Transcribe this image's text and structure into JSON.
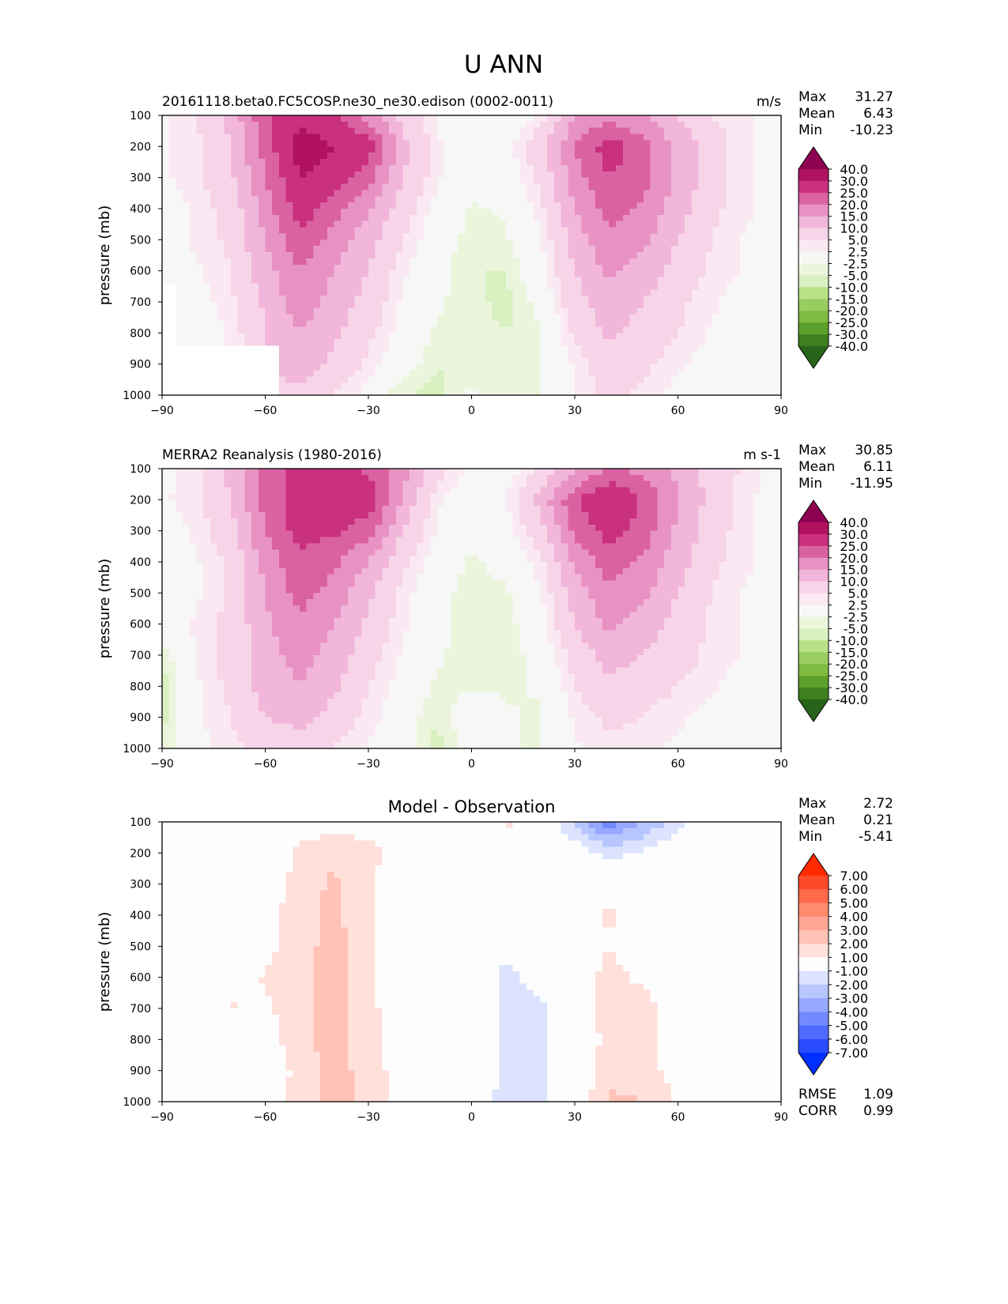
{
  "title": "U ANN",
  "chart_data": [
    {
      "type": "heatmap",
      "subtype": "filled-contour",
      "title": "20161118.beta0.FC5COSP.ne30_ne30.edison (0002-0011)",
      "units": "m/s",
      "xlabel": "",
      "ylabel": "pressure (mb)",
      "xlim": [
        -90,
        90
      ],
      "ylim": [
        1000,
        100
      ],
      "xticks": [
        "−90",
        "−60",
        "−30",
        "0",
        "30",
        "60",
        "90"
      ],
      "yticks": [
        "100",
        "200",
        "300",
        "400",
        "500",
        "600",
        "700",
        "800",
        "900",
        "1000"
      ],
      "stats": {
        "Max": "31.27",
        "Mean": "6.43",
        "Min": "-10.23"
      },
      "lat": [
        -90,
        -80,
        -70,
        -60,
        -50,
        -40,
        -30,
        -20,
        -10,
        0,
        10,
        20,
        30,
        40,
        50,
        60,
        70,
        80,
        90
      ],
      "lev": [
        100,
        200,
        300,
        400,
        500,
        600,
        700,
        800,
        900,
        1000
      ],
      "values": [
        [
          2,
          5,
          12,
          24,
          28,
          27,
          18,
          8,
          2,
          0,
          0,
          3,
          15,
          18,
          15,
          10,
          5,
          3,
          1
        ],
        [
          2,
          4,
          10,
          22,
          33,
          30,
          28,
          12,
          3,
          -1,
          1,
          8,
          20,
          28,
          22,
          14,
          7,
          3,
          1
        ],
        [
          2,
          4,
          9,
          20,
          30,
          28,
          22,
          10,
          3,
          -1,
          0,
          6,
          18,
          25,
          22,
          14,
          7,
          3,
          1
        ],
        [
          1,
          3,
          7,
          17,
          28,
          22,
          16,
          7,
          1,
          -3,
          -2,
          4,
          15,
          22,
          19,
          12,
          6,
          3,
          1
        ],
        [
          1,
          3,
          6,
          15,
          24,
          18,
          12,
          5,
          0,
          -4,
          -3,
          2,
          12,
          19,
          16,
          10,
          5,
          2,
          1
        ],
        [
          2,
          2,
          5,
          13,
          20,
          15,
          10,
          3,
          -1,
          -5,
          -5,
          1,
          10,
          16,
          13,
          8,
          4,
          2,
          1
        ],
        [
          null,
          1,
          4,
          11,
          18,
          13,
          8,
          2,
          -2,
          -4,
          -6,
          -1,
          8,
          13,
          10,
          6,
          3,
          1,
          1
        ],
        [
          null,
          0,
          3,
          10,
          15,
          11,
          6,
          1,
          -3,
          -4,
          -5,
          -3,
          6,
          11,
          8,
          5,
          2,
          1,
          0
        ],
        [
          null,
          null,
          null,
          null,
          12,
          9,
          4,
          0,
          -5,
          -3,
          -4,
          -3,
          3,
          8,
          6,
          3,
          1,
          0,
          0
        ],
        [
          null,
          null,
          null,
          null,
          9,
          5,
          1,
          -5,
          -6,
          -2,
          -5,
          -3,
          3,
          6,
          4,
          1,
          0,
          0,
          0
        ]
      ],
      "levels": [
        "40.0",
        "30.0",
        "25.0",
        "20.0",
        "15.0",
        "10.0",
        "5.0",
        "2.5",
        "-2.5",
        "-5.0",
        "-10.0",
        "-15.0",
        "-20.0",
        "-25.0",
        "-30.0",
        "-40.0"
      ],
      "colors": [
        "#8e0152",
        "#b0125f",
        "#c9307f",
        "#db62a1",
        "#e892c3",
        "#f1b6da",
        "#f8d4e8",
        "#fae8f2",
        "#f7f7f6",
        "#ebf5dc",
        "#d9f0c0",
        "#b8e186",
        "#9acd61",
        "#7fbc41",
        "#5ea02c",
        "#3f7f1f",
        "#276419"
      ]
    },
    {
      "type": "heatmap",
      "subtype": "filled-contour",
      "title": "MERRA2 Reanalysis (1980-2016)",
      "units": "m s-1",
      "xlabel": "",
      "ylabel": "pressure (mb)",
      "xlim": [
        -90,
        90
      ],
      "ylim": [
        1000,
        100
      ],
      "xticks": [
        "−90",
        "−60",
        "−30",
        "0",
        "30",
        "60",
        "90"
      ],
      "yticks": [
        "100",
        "200",
        "300",
        "400",
        "500",
        "600",
        "700",
        "800",
        "900",
        "1000"
      ],
      "stats": {
        "Max": "30.85",
        "Mean": "6.11",
        "Min": "-11.95"
      },
      "lat": [
        -90,
        -80,
        -70,
        -60,
        -50,
        -40,
        -30,
        -20,
        -10,
        0,
        10,
        20,
        30,
        40,
        50,
        60,
        70,
        80,
        90
      ],
      "lev": [
        100,
        200,
        300,
        400,
        500,
        600,
        700,
        800,
        900,
        1000
      ],
      "values": [
        [
          1,
          4,
          12,
          22,
          27,
          27,
          24,
          18,
          7,
          1,
          1,
          5,
          14,
          20,
          19,
          14,
          8,
          4,
          1
        ],
        [
          2,
          4,
          10,
          22,
          28,
          28,
          29,
          14,
          3,
          0,
          2,
          12,
          24,
          31,
          24,
          15,
          8,
          3,
          1
        ],
        [
          1,
          3,
          8,
          20,
          27,
          26,
          22,
          10,
          2,
          -1,
          1,
          8,
          21,
          27,
          23,
          14,
          7,
          3,
          1
        ],
        [
          1,
          2,
          6,
          17,
          24,
          21,
          15,
          6,
          0,
          -3,
          -1,
          4,
          16,
          23,
          19,
          12,
          6,
          3,
          1
        ],
        [
          1,
          2,
          6,
          15,
          22,
          18,
          11,
          4,
          -1,
          -4,
          -3,
          2,
          12,
          19,
          16,
          10,
          5,
          2,
          1
        ],
        [
          -1,
          3,
          6,
          14,
          19,
          15,
          9,
          3,
          -1,
          -5,
          -4,
          1,
          10,
          16,
          13,
          8,
          4,
          2,
          1
        ],
        [
          -4,
          3,
          7,
          13,
          17,
          13,
          7,
          2,
          -2,
          -4,
          -4,
          -1,
          7,
          12,
          10,
          7,
          4,
          2,
          1
        ],
        [
          -7,
          2,
          6,
          12,
          15,
          11,
          5,
          1,
          -3,
          -3,
          -3,
          -2,
          5,
          9,
          7,
          5,
          3,
          1,
          0
        ],
        [
          -6,
          2,
          5,
          10,
          12,
          8,
          4,
          0,
          -5,
          1,
          -2,
          -3,
          3,
          6,
          5,
          3,
          1,
          0,
          0
        ],
        [
          -4,
          1,
          4,
          6,
          7,
          5,
          2,
          -1,
          -6,
          0,
          -2,
          -3,
          2,
          4,
          3,
          2,
          1,
          0,
          0
        ]
      ],
      "levels": [
        "40.0",
        "30.0",
        "25.0",
        "20.0",
        "15.0",
        "10.0",
        "5.0",
        "2.5",
        "-2.5",
        "-5.0",
        "-10.0",
        "-15.0",
        "-20.0",
        "-25.0",
        "-30.0",
        "-40.0"
      ],
      "colors": [
        "#8e0152",
        "#b0125f",
        "#c9307f",
        "#db62a1",
        "#e892c3",
        "#f1b6da",
        "#f8d4e8",
        "#fae8f2",
        "#f7f7f6",
        "#ebf5dc",
        "#d9f0c0",
        "#b8e186",
        "#9acd61",
        "#7fbc41",
        "#5ea02c",
        "#3f7f1f",
        "#276419"
      ]
    },
    {
      "type": "heatmap",
      "subtype": "filled-contour",
      "title": "Model - Observation",
      "units": "",
      "xlabel": "",
      "ylabel": "pressure (mb)",
      "xlim": [
        -90,
        90
      ],
      "ylim": [
        1000,
        100
      ],
      "xticks": [
        "−90",
        "−60",
        "−30",
        "0",
        "30",
        "60",
        "90"
      ],
      "yticks": [
        "100",
        "200",
        "300",
        "400",
        "500",
        "600",
        "700",
        "800",
        "900",
        "1000"
      ],
      "stats": {
        "Max": "2.72",
        "Mean": "0.21",
        "Min": "-5.41"
      },
      "metrics": {
        "RMSE": "1.09",
        "CORR": "0.99"
      },
      "lat": [
        -90,
        -80,
        -70,
        -60,
        -50,
        -40,
        -30,
        -20,
        -10,
        0,
        10,
        20,
        30,
        40,
        50,
        60,
        70,
        80,
        90
      ],
      "lev": [
        100,
        200,
        300,
        400,
        500,
        600,
        700,
        800,
        900,
        1000
      ],
      "values": [
        [
          0,
          0,
          0,
          0,
          0.5,
          0.5,
          0.5,
          0.5,
          0.5,
          0.3,
          1.2,
          0.5,
          -2.5,
          -4.5,
          -3,
          -1.5,
          0,
          0,
          0
        ],
        [
          0,
          0,
          0,
          0,
          1.2,
          1.8,
          1.3,
          0.5,
          0,
          0,
          0,
          0,
          0,
          -1.5,
          -0.8,
          0,
          0,
          0,
          0
        ],
        [
          0,
          0,
          0,
          0.3,
          1.5,
          2.2,
          1.2,
          0.3,
          0,
          0,
          0,
          0,
          0.3,
          0.8,
          0.3,
          0,
          0,
          0,
          0
        ],
        [
          0,
          0,
          0,
          0.5,
          1.6,
          2.3,
          1.2,
          0.3,
          0,
          0,
          0,
          0,
          0.4,
          1.1,
          0.5,
          0,
          0,
          0,
          0
        ],
        [
          0,
          0,
          0,
          0.6,
          1.6,
          2.4,
          1.2,
          0.3,
          0,
          0,
          -0.8,
          0,
          0.3,
          1.0,
          0.5,
          0,
          0,
          0,
          0
        ],
        [
          0,
          0,
          0.5,
          1.1,
          1.6,
          2.5,
          1.2,
          0.3,
          0,
          0,
          -1.3,
          -0.6,
          0.6,
          1.3,
          0.8,
          0,
          0,
          0,
          0
        ],
        [
          0,
          0.5,
          1.1,
          0.8,
          1.6,
          2.5,
          1.3,
          0.3,
          0,
          0,
          -1.4,
          -1.2,
          0,
          1.5,
          1.4,
          0.5,
          0,
          0,
          0
        ],
        [
          0,
          1.0,
          0.3,
          0.5,
          1.6,
          2.5,
          1.3,
          0.4,
          0,
          -0.2,
          -1.3,
          -1.3,
          0,
          1.4,
          1.3,
          0.5,
          0,
          0,
          0
        ],
        [
          0,
          0,
          0,
          0,
          1.4,
          2.5,
          1.5,
          0.5,
          0,
          -0.2,
          -1.3,
          -1.2,
          0,
          1.6,
          1.5,
          0.5,
          0,
          0,
          0
        ],
        [
          0,
          0,
          0,
          0,
          1.5,
          2.5,
          1.8,
          0.5,
          -0.3,
          -0.4,
          -1.3,
          -1.2,
          0,
          2.2,
          2.0,
          0.9,
          0,
          0,
          0
        ]
      ],
      "levels": [
        "7.00",
        "6.00",
        "5.00",
        "4.00",
        "3.00",
        "2.00",
        "1.00",
        "-1.00",
        "-2.00",
        "-3.00",
        "-4.00",
        "-5.00",
        "-6.00",
        "-7.00"
      ],
      "colors": [
        "#ff2a00",
        "#ff4a2a",
        "#ff6a4a",
        "#ff8a6e",
        "#ffa593",
        "#ffc2b5",
        "#ffe0da",
        "#fdfdfd",
        "#dce3ff",
        "#b8c6ff",
        "#96a8ff",
        "#7389ff",
        "#4f6bff",
        "#2a4cff",
        "#0030ff"
      ]
    }
  ]
}
